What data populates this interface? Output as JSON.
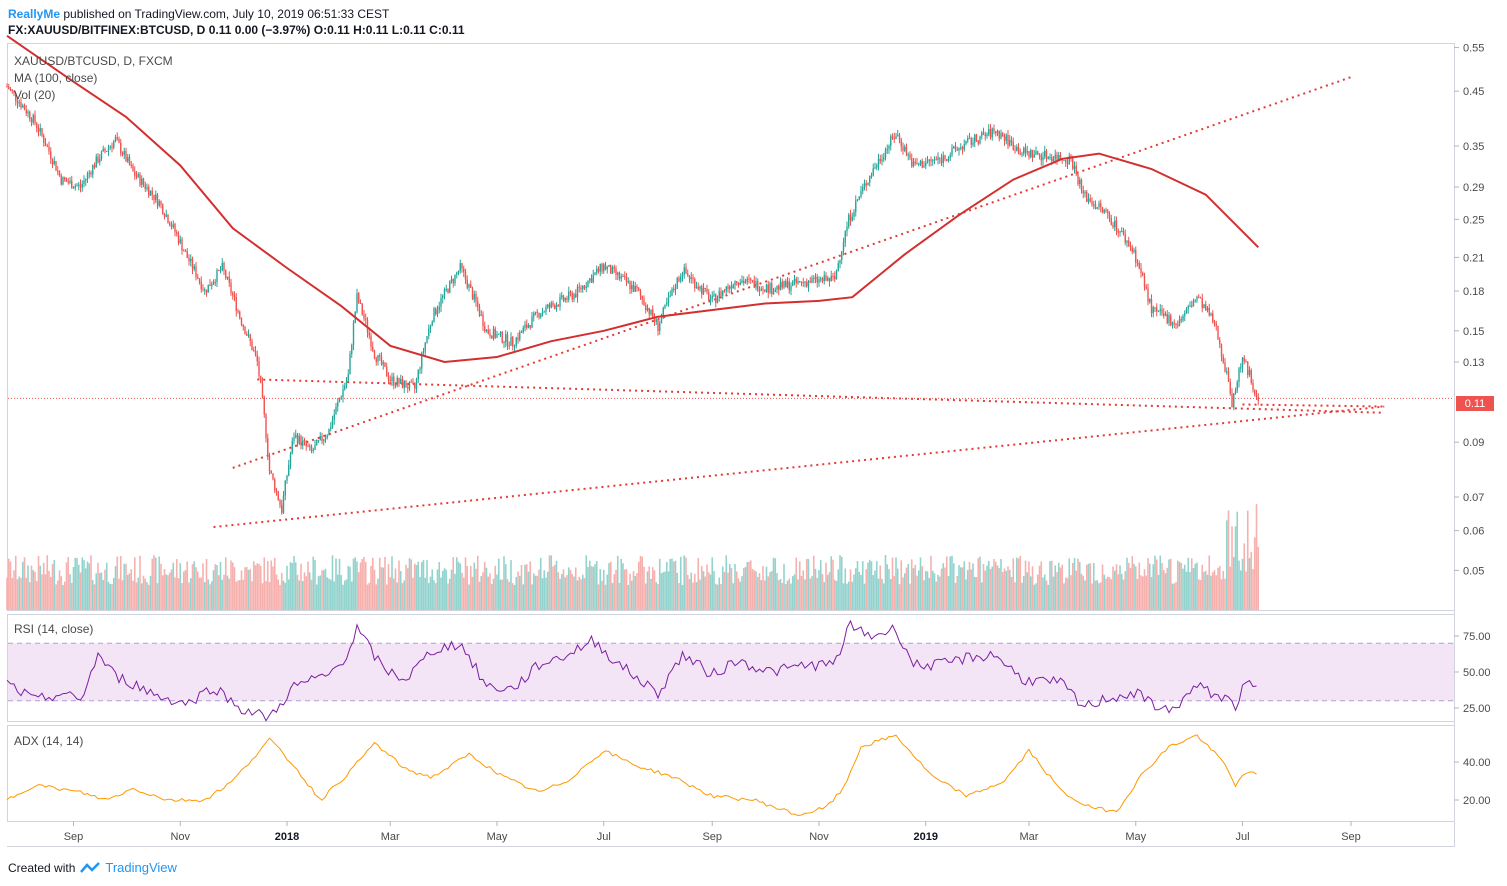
{
  "header": {
    "publisher": "ReallyMe",
    "published_text": "published on TradingView.com, July 10, 2019 06:51:33 CEST",
    "symbol_line": "FX:XAUUSD/BITFINEX:BTCUSD, D",
    "ohlc_text": "0.11 0.00 (−3.97%) O:0.11 H:0.11 L:0.11 C:0.11"
  },
  "legend": {
    "symbol": "XAUUSD/BTCUSD, D, FXCM",
    "ma": "MA (100, close)",
    "vol": "Vol (20)",
    "rsi": "RSI (14, close)",
    "adx": "ADX (14, 14)"
  },
  "last_price_label": "0.11",
  "footer": {
    "created_with": "Created with",
    "brand": "TradingView"
  },
  "colors": {
    "up": "#26a69a",
    "down": "#ef5350",
    "ma": "#d32f2f",
    "rsi": "#7b1fa2",
    "rsi_band": "#f3e5f5",
    "adx": "#ff9800",
    "trend": "#e53935"
  },
  "chart_data": {
    "type": "candlestick",
    "x_ticks": [
      {
        "label": "Sep",
        "bold": false
      },
      {
        "label": "Nov",
        "bold": false
      },
      {
        "label": "2018",
        "bold": true
      },
      {
        "label": "Mar",
        "bold": false
      },
      {
        "label": "May",
        "bold": false
      },
      {
        "label": "Jul",
        "bold": false
      },
      {
        "label": "Sep",
        "bold": false
      },
      {
        "label": "Nov",
        "bold": false
      },
      {
        "label": "2019",
        "bold": true
      },
      {
        "label": "Mar",
        "bold": false
      },
      {
        "label": "May",
        "bold": false
      },
      {
        "label": "Jul",
        "bold": false
      },
      {
        "label": "Sep",
        "bold": false
      }
    ],
    "price_ticks": [
      "0.55",
      "0.45",
      "0.35",
      "0.29",
      "0.25",
      "0.21",
      "0.18",
      "0.15",
      "0.13",
      "0.09",
      "0.07",
      "0.06",
      "0.05"
    ],
    "rsi_ticks": [
      "75.00",
      "50.00",
      "25.00"
    ],
    "adx_ticks": [
      "40.00",
      "20.00"
    ],
    "price_path": [
      [
        "2017-07-25",
        0.46
      ],
      [
        "2017-08-10",
        0.39
      ],
      [
        "2017-08-25",
        0.3
      ],
      [
        "2017-09-05",
        0.29
      ],
      [
        "2017-09-15",
        0.33
      ],
      [
        "2017-09-25",
        0.36
      ],
      [
        "2017-10-05",
        0.31
      ],
      [
        "2017-10-20",
        0.27
      ],
      [
        "2017-11-05",
        0.21
      ],
      [
        "2017-11-15",
        0.18
      ],
      [
        "2017-11-25",
        0.2
      ],
      [
        "2017-12-05",
        0.16
      ],
      [
        "2017-12-15",
        0.13
      ],
      [
        "2017-12-22",
        0.079
      ],
      [
        "2017-12-29",
        0.066
      ],
      [
        "2018-01-05",
        0.093
      ],
      [
        "2018-01-15",
        0.086
      ],
      [
        "2018-01-25",
        0.095
      ],
      [
        "2018-02-05",
        0.122
      ],
      [
        "2018-02-10",
        0.175
      ],
      [
        "2018-02-20",
        0.135
      ],
      [
        "2018-03-01",
        0.12
      ],
      [
        "2018-03-15",
        0.115
      ],
      [
        "2018-03-25",
        0.16
      ],
      [
        "2018-04-10",
        0.2
      ],
      [
        "2018-04-25",
        0.15
      ],
      [
        "2018-05-10",
        0.142
      ],
      [
        "2018-05-25",
        0.163
      ],
      [
        "2018-06-15",
        0.178
      ],
      [
        "2018-07-01",
        0.202
      ],
      [
        "2018-07-20",
        0.18
      ],
      [
        "2018-08-01",
        0.153
      ],
      [
        "2018-08-15",
        0.198
      ],
      [
        "2018-09-01",
        0.172
      ],
      [
        "2018-09-15",
        0.19
      ],
      [
        "2018-10-05",
        0.182
      ],
      [
        "2018-10-25",
        0.188
      ],
      [
        "2018-11-10",
        0.19
      ],
      [
        "2018-11-18",
        0.25
      ],
      [
        "2018-12-01",
        0.31
      ],
      [
        "2018-12-15",
        0.37
      ],
      [
        "2018-12-25",
        0.32
      ],
      [
        "2019-01-10",
        0.33
      ],
      [
        "2019-01-25",
        0.355
      ],
      [
        "2019-02-10",
        0.375
      ],
      [
        "2019-02-25",
        0.34
      ],
      [
        "2019-03-10",
        0.335
      ],
      [
        "2019-03-25",
        0.33
      ],
      [
        "2019-04-01",
        0.28
      ],
      [
        "2019-04-15",
        0.255
      ],
      [
        "2019-04-30",
        0.215
      ],
      [
        "2019-05-10",
        0.165
      ],
      [
        "2019-05-25",
        0.155
      ],
      [
        "2019-06-05",
        0.175
      ],
      [
        "2019-06-15",
        0.155
      ],
      [
        "2019-06-25",
        0.108
      ],
      [
        "2019-07-01",
        0.132
      ],
      [
        "2019-07-10",
        0.11
      ]
    ],
    "ma_path": [
      [
        "2017-07-25",
        0.58
      ],
      [
        "2017-09-01",
        0.47
      ],
      [
        "2017-10-01",
        0.4
      ],
      [
        "2017-11-01",
        0.32
      ],
      [
        "2017-12-01",
        0.24
      ],
      [
        "2018-01-01",
        0.2
      ],
      [
        "2018-02-01",
        0.168
      ],
      [
        "2018-03-01",
        0.14
      ],
      [
        "2018-04-01",
        0.13
      ],
      [
        "2018-05-01",
        0.133
      ],
      [
        "2018-06-01",
        0.143
      ],
      [
        "2018-07-01",
        0.15
      ],
      [
        "2018-08-01",
        0.16
      ],
      [
        "2018-09-01",
        0.165
      ],
      [
        "2018-10-01",
        0.17
      ],
      [
        "2018-11-01",
        0.172
      ],
      [
        "2018-11-20",
        0.175
      ],
      [
        "2018-12-20",
        0.213
      ],
      [
        "2019-01-20",
        0.255
      ],
      [
        "2019-02-20",
        0.3
      ],
      [
        "2019-03-20",
        0.33
      ],
      [
        "2019-04-10",
        0.338
      ],
      [
        "2019-05-10",
        0.315
      ],
      [
        "2019-06-10",
        0.28
      ],
      [
        "2019-07-10",
        0.22
      ]
    ],
    "trendlines": [
      {
        "from": [
          "2017-12-01",
          0.08
        ],
        "to": [
          "2019-09-01",
          0.48
        ]
      },
      {
        "from": [
          "2017-11-20",
          0.061
        ],
        "to": [
          "2019-09-20",
          0.106
        ]
      },
      {
        "from": [
          "2017-12-15",
          0.12
        ],
        "to": [
          "2019-09-20",
          0.103
        ]
      },
      {
        "from": [
          "2019-07-01",
          0.107
        ],
        "to": [
          "2019-09-20",
          0.106
        ]
      }
    ],
    "rsi_path": [
      [
        "2017-07-25",
        42
      ],
      [
        "2017-08-10",
        30
      ],
      [
        "2017-08-25",
        35
      ],
      [
        "2017-09-05",
        30
      ],
      [
        "2017-09-15",
        62
      ],
      [
        "2017-09-25",
        47
      ],
      [
        "2017-10-05",
        42
      ],
      [
        "2017-10-20",
        33
      ],
      [
        "2017-11-05",
        28
      ],
      [
        "2017-11-20",
        40
      ],
      [
        "2017-12-05",
        25
      ],
      [
        "2017-12-22",
        18
      ],
      [
        "2018-01-05",
        40
      ],
      [
        "2018-01-25",
        48
      ],
      [
        "2018-02-05",
        63
      ],
      [
        "2018-02-10",
        80
      ],
      [
        "2018-02-25",
        52
      ],
      [
        "2018-03-10",
        45
      ],
      [
        "2018-03-25",
        65
      ],
      [
        "2018-04-10",
        70
      ],
      [
        "2018-04-25",
        40
      ],
      [
        "2018-05-10",
        38
      ],
      [
        "2018-05-25",
        55
      ],
      [
        "2018-06-10",
        62
      ],
      [
        "2018-06-25",
        72
      ],
      [
        "2018-07-10",
        55
      ],
      [
        "2018-08-01",
        35
      ],
      [
        "2018-08-15",
        62
      ],
      [
        "2018-09-01",
        48
      ],
      [
        "2018-09-15",
        58
      ],
      [
        "2018-10-05",
        50
      ],
      [
        "2018-10-25",
        55
      ],
      [
        "2018-11-10",
        55
      ],
      [
        "2018-11-18",
        82
      ],
      [
        "2018-12-01",
        75
      ],
      [
        "2018-12-15",
        80
      ],
      [
        "2018-12-25",
        55
      ],
      [
        "2019-01-10",
        55
      ],
      [
        "2019-01-25",
        60
      ],
      [
        "2019-02-10",
        62
      ],
      [
        "2019-02-25",
        45
      ],
      [
        "2019-03-20",
        42
      ],
      [
        "2019-04-01",
        25
      ],
      [
        "2019-04-15",
        32
      ],
      [
        "2019-05-01",
        35
      ],
      [
        "2019-05-20",
        22
      ],
      [
        "2019-06-05",
        40
      ],
      [
        "2019-06-20",
        32
      ],
      [
        "2019-06-27",
        27
      ],
      [
        "2019-07-03",
        42
      ],
      [
        "2019-07-10",
        37
      ]
    ],
    "adx_path": [
      [
        "2017-07-25",
        20
      ],
      [
        "2017-08-10",
        28
      ],
      [
        "2017-09-05",
        24
      ],
      [
        "2017-09-20",
        20
      ],
      [
        "2017-10-05",
        26
      ],
      [
        "2017-10-25",
        20
      ],
      [
        "2017-11-15",
        20
      ],
      [
        "2017-12-01",
        30
      ],
      [
        "2017-12-22",
        52
      ],
      [
        "2018-01-05",
        38
      ],
      [
        "2018-01-20",
        20
      ],
      [
        "2018-02-05",
        34
      ],
      [
        "2018-02-20",
        50
      ],
      [
        "2018-03-10",
        36
      ],
      [
        "2018-03-25",
        32
      ],
      [
        "2018-04-15",
        44
      ],
      [
        "2018-05-05",
        32
      ],
      [
        "2018-05-25",
        24
      ],
      [
        "2018-06-10",
        30
      ],
      [
        "2018-07-01",
        46
      ],
      [
        "2018-07-20",
        38
      ],
      [
        "2018-08-10",
        32
      ],
      [
        "2018-09-01",
        22
      ],
      [
        "2018-09-25",
        20
      ],
      [
        "2018-10-20",
        12
      ],
      [
        "2018-11-05",
        16
      ],
      [
        "2018-11-15",
        26
      ],
      [
        "2018-11-25",
        48
      ],
      [
        "2018-12-15",
        54
      ],
      [
        "2019-01-05",
        32
      ],
      [
        "2019-01-25",
        22
      ],
      [
        "2019-02-15",
        30
      ],
      [
        "2019-03-01",
        46
      ],
      [
        "2019-03-20",
        24
      ],
      [
        "2019-04-05",
        16
      ],
      [
        "2019-04-20",
        14
      ],
      [
        "2019-05-05",
        34
      ],
      [
        "2019-05-20",
        48
      ],
      [
        "2019-06-05",
        54
      ],
      [
        "2019-06-20",
        40
      ],
      [
        "2019-06-27",
        28
      ],
      [
        "2019-07-03",
        34
      ],
      [
        "2019-07-10",
        34
      ]
    ]
  }
}
